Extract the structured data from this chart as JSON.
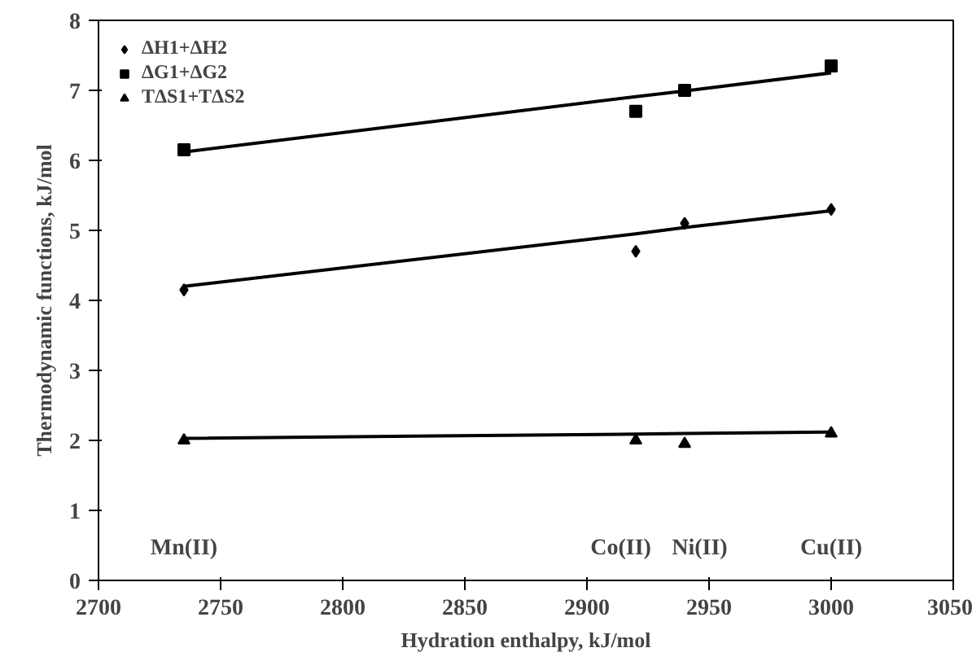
{
  "chart_data": {
    "type": "scatter",
    "xlabel": "Hydration enthalpy, kJ/mol",
    "ylabel": "Thermodynamic functions, kJ/mol",
    "x": [
      2735,
      2920,
      2940,
      3000
    ],
    "series": [
      {
        "name": "ΔH1+ΔH2",
        "color": "#000000",
        "marker": "diamond",
        "values": [
          4.15,
          4.7,
          5.1,
          5.3
        ]
      },
      {
        "name": "ΔG1+ΔG2",
        "color": "#000000",
        "marker": "square",
        "values": [
          6.15,
          6.7,
          7.0,
          7.35
        ]
      },
      {
        "name": "TΔS1+TΔS2",
        "color": "#000000",
        "marker": "triangle",
        "values": [
          2.0,
          2.0,
          1.95,
          2.1
        ]
      },
      {
        "type": "line",
        "color": "#000000",
        "values": [
          4.2,
          4.95,
          5.04,
          5.28
        ]
      },
      {
        "type": "line",
        "color": "#000000",
        "values": [
          6.12,
          6.91,
          6.99,
          7.25
        ]
      },
      {
        "type": "line",
        "color": "#000000",
        "values": [
          2.03,
          2.09,
          2.1,
          2.12
        ]
      }
    ],
    "annotations": [
      "Mn(II)",
      "Co(II)",
      "Ni(II)",
      "Cu(II)"
    ],
    "xlim": [
      2700,
      3050
    ],
    "xticks": [
      2700,
      2750,
      2800,
      2850,
      2900,
      2950,
      3000,
      3050
    ],
    "ylim": [
      0,
      8
    ],
    "yticks": [
      0,
      1,
      2,
      3,
      4,
      5,
      6,
      7,
      8
    ],
    "grid": false,
    "legend": "top left"
  }
}
